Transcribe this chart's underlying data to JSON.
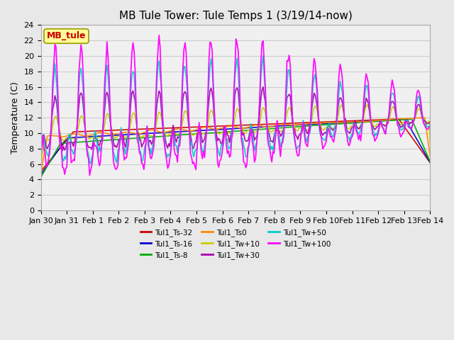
{
  "title": "MB Tule Tower: Tule Temps 1 (3/19/14-now)",
  "ylabel": "Temperature (C)",
  "ylim": [
    0,
    24
  ],
  "yticks": [
    0,
    2,
    4,
    6,
    8,
    10,
    12,
    14,
    16,
    18,
    20,
    22,
    24
  ],
  "x_tick_labels": [
    "Jan 30",
    "Jan 31",
    "Feb 1",
    "Feb 2",
    "Feb 3",
    "Feb 4",
    "Feb 5",
    "Feb 6",
    "Feb 7",
    "Feb 8",
    "Feb 9",
    "Feb 10",
    "Feb 11",
    "Feb 12",
    "Feb 13",
    "Feb 14"
  ],
  "series_colors": {
    "Tul1_Ts-32": "#cc0000",
    "Tul1_Ts-16": "#0000cc",
    "Tul1_Ts-8": "#00aa00",
    "Tul1_Ts0": "#ff8800",
    "Tul1_Tw+10": "#cccc00",
    "Tul1_Tw+30": "#aa00aa",
    "Tul1_Tw+50": "#00cccc",
    "Tul1_Tw+100": "#ff00ff"
  },
  "legend_box_color": "#ffff99",
  "legend_box_label": "MB_tule",
  "legend_box_text_color": "#cc0000",
  "bg_color": "#e8e8e8",
  "plot_bg_color": "#f0f0f0",
  "grid_color": "#cccccc",
  "title_fontsize": 11,
  "tick_fontsize": 8,
  "label_fontsize": 9
}
